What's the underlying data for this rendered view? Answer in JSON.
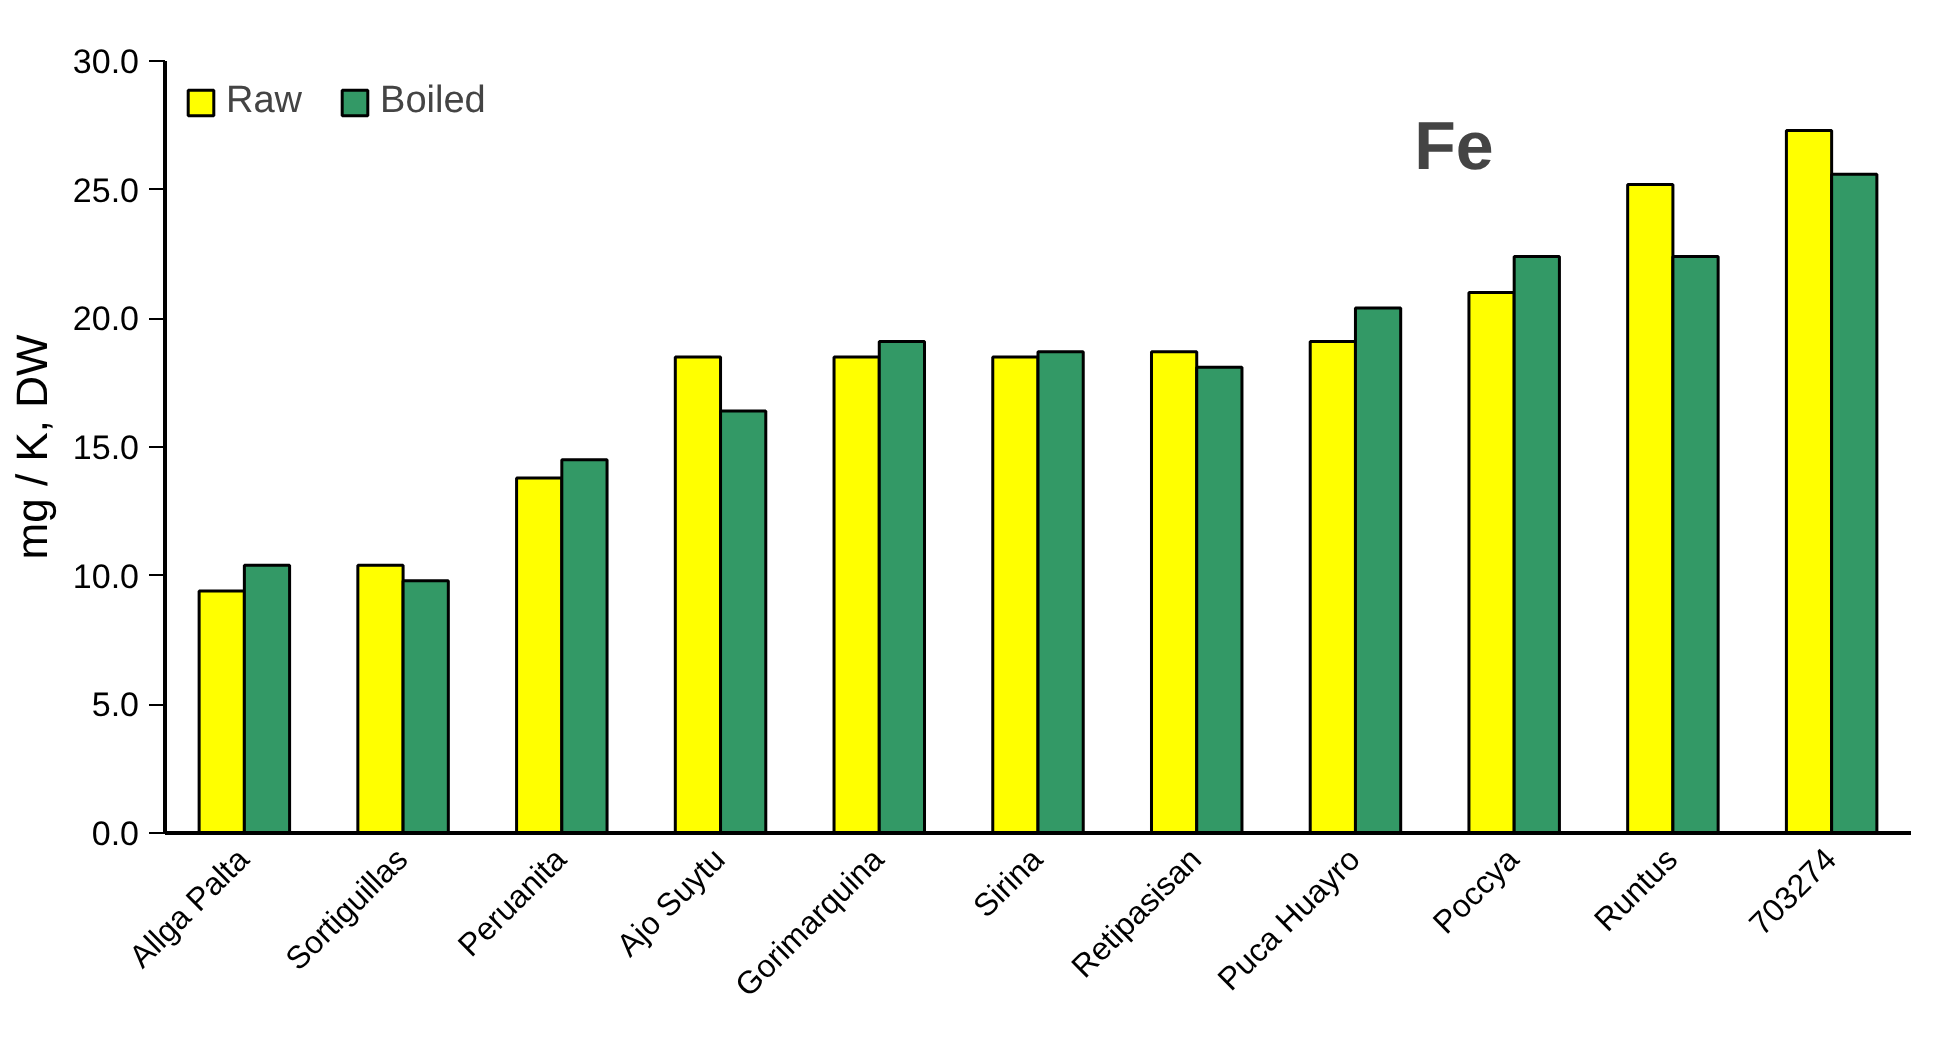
{
  "chart_data": {
    "type": "bar",
    "title": "Fe",
    "ylabel": "mg / K, DW",
    "categories": [
      "Allga Palta",
      "Sortiguillas",
      "Peruanita",
      "Ajo Suytu",
      "Gorimarquina",
      "Sirina",
      "Retipasisan",
      "Puca Huayro",
      "Poccya",
      "Runtus",
      "703274"
    ],
    "series": [
      {
        "name": "Raw",
        "color": "#ffff00",
        "values": [
          9.4,
          10.4,
          13.8,
          18.5,
          18.5,
          18.5,
          18.7,
          19.1,
          21.0,
          25.2,
          27.3
        ]
      },
      {
        "name": "Boiled",
        "color": "#339966",
        "values": [
          10.4,
          9.8,
          14.5,
          16.4,
          19.1,
          18.7,
          18.1,
          20.4,
          22.4,
          22.4,
          25.6
        ]
      }
    ],
    "ylim": [
      0,
      30
    ],
    "yticks": [
      {
        "value": 0,
        "label": "0.0"
      },
      {
        "value": 5,
        "label": "5.0"
      },
      {
        "value": 10,
        "label": "10.0"
      },
      {
        "value": 15,
        "label": "15.0"
      },
      {
        "value": 20,
        "label": "20.0"
      },
      {
        "value": 25,
        "label": "25.0"
      },
      {
        "value": 30,
        "label": "30.0"
      }
    ],
    "grid": false,
    "legend": "top left"
  }
}
